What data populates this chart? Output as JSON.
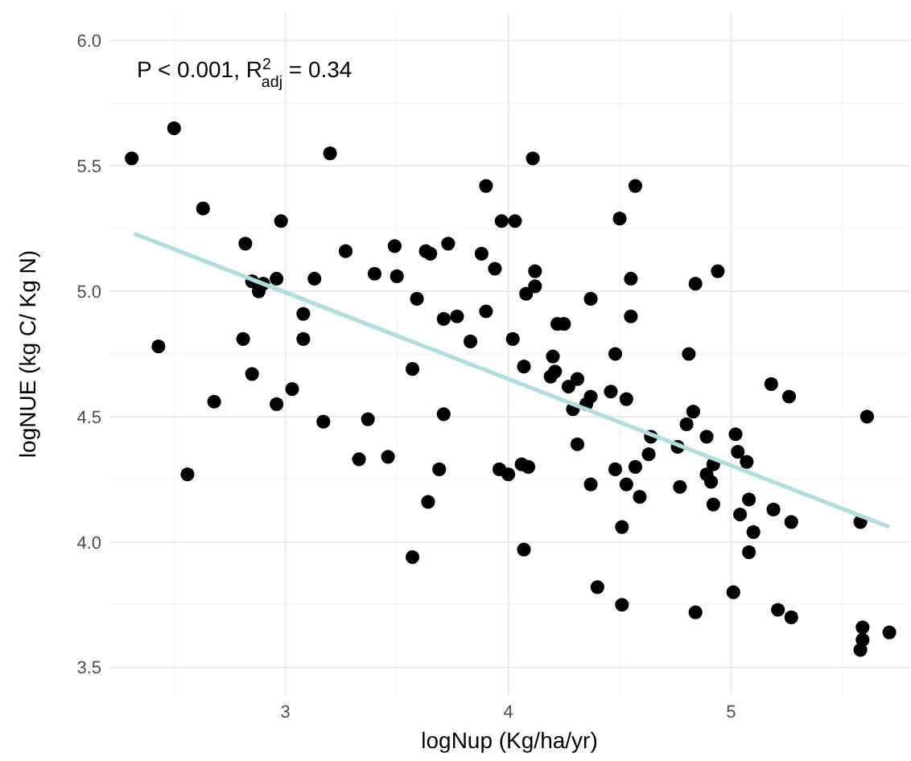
{
  "chart_data": {
    "type": "scatter",
    "xlabel": "logNup (Kg/ha/yr)",
    "ylabel": "logNUE (kg C/ Kg N)",
    "annotations": [
      "P < 0.001, R$^{2}$$_{adj}$ = 0.34"
    ],
    "xlim": [
      2.21,
      5.8
    ],
    "xticks": [
      3,
      4,
      5
    ],
    "ylim": [
      3.39,
      6.11
    ],
    "yticks": [
      3.5,
      {
        "value": 4,
        "label": "4.0"
      },
      4.5,
      {
        "value": 5,
        "label": "5.0"
      },
      5.5,
      {
        "value": 6,
        "label": "6.0"
      }
    ],
    "grid": true,
    "marker": "circle",
    "series": [
      {
        "color": "#000000",
        "x": [
          2.5,
          2.31,
          3.2,
          2.63,
          2.98,
          2.82,
          3.27,
          3.49,
          3.4,
          3.5,
          2.85,
          2.9,
          2.88,
          2.96,
          3.13,
          3.59,
          3.08,
          3.08,
          2.43,
          2.81,
          3.57,
          2.85,
          3.03,
          2.68,
          2.96,
          3.17,
          3.37,
          2.56,
          3.33,
          3.46,
          3.57,
          4.11,
          3.9,
          4.57,
          3.97,
          4.03,
          4.5,
          3.63,
          3.65,
          3.73,
          3.88,
          3.94,
          4.12,
          4.55,
          4.12,
          4.08,
          4.37,
          4.55,
          3.71,
          3.77,
          3.9,
          4.22,
          4.25,
          3.83,
          4.02,
          4.07,
          4.2,
          4.48,
          4.19,
          4.21,
          4.27,
          4.31,
          4.37,
          4.35,
          4.29,
          4.46,
          4.53,
          3.71,
          4.64,
          4.31,
          3.69,
          3.64,
          3.96,
          4.0,
          4.06,
          4.09,
          4.37,
          4.48,
          4.53,
          4.57,
          4.63,
          4.59,
          4.51,
          4.07,
          4.4,
          4.51,
          4.84,
          4.94,
          4.81,
          5.18,
          5.26,
          5.61,
          4.83,
          4.8,
          4.89,
          5.02,
          4.76,
          5.03,
          5.07,
          4.92,
          4.89,
          4.91,
          4.77,
          4.92,
          5.08,
          5.04,
          5.19,
          5.27,
          5.1,
          5.08,
          5.58,
          5.01,
          4.84,
          5.21,
          5.27,
          5.59,
          5.59,
          5.58,
          5.71
        ],
        "values": [
          5.65,
          5.53,
          5.55,
          5.33,
          5.28,
          5.19,
          5.16,
          5.18,
          5.07,
          5.06,
          5.04,
          5.03,
          5.0,
          5.05,
          5.05,
          4.97,
          4.91,
          4.81,
          4.78,
          4.81,
          4.69,
          4.67,
          4.61,
          4.56,
          4.55,
          4.48,
          4.49,
          4.27,
          4.33,
          4.34,
          3.94,
          5.53,
          5.42,
          5.42,
          5.28,
          5.28,
          5.29,
          5.16,
          5.15,
          5.19,
          5.15,
          5.09,
          5.08,
          5.05,
          5.02,
          4.99,
          4.97,
          4.9,
          4.89,
          4.9,
          4.92,
          4.87,
          4.87,
          4.8,
          4.81,
          4.7,
          4.74,
          4.75,
          4.66,
          4.68,
          4.62,
          4.65,
          4.58,
          4.55,
          4.53,
          4.6,
          4.57,
          4.51,
          4.42,
          4.39,
          4.29,
          4.16,
          4.29,
          4.27,
          4.31,
          4.3,
          4.23,
          4.29,
          4.23,
          4.3,
          4.35,
          4.18,
          4.06,
          3.97,
          3.82,
          3.75,
          5.03,
          5.08,
          4.75,
          4.63,
          4.58,
          4.5,
          4.52,
          4.47,
          4.42,
          4.43,
          4.38,
          4.36,
          4.32,
          4.31,
          4.27,
          4.24,
          4.22,
          4.15,
          4.17,
          4.11,
          4.13,
          4.08,
          4.04,
          3.96,
          4.08,
          3.8,
          3.72,
          3.73,
          3.7,
          3.66,
          3.61,
          3.57,
          3.64
        ]
      },
      {
        "type": "line",
        "color": "#b0dde2",
        "marker": "none",
        "x": [
          2.32,
          5.71
        ],
        "values": [
          5.23,
          4.06
        ]
      }
    ]
  }
}
